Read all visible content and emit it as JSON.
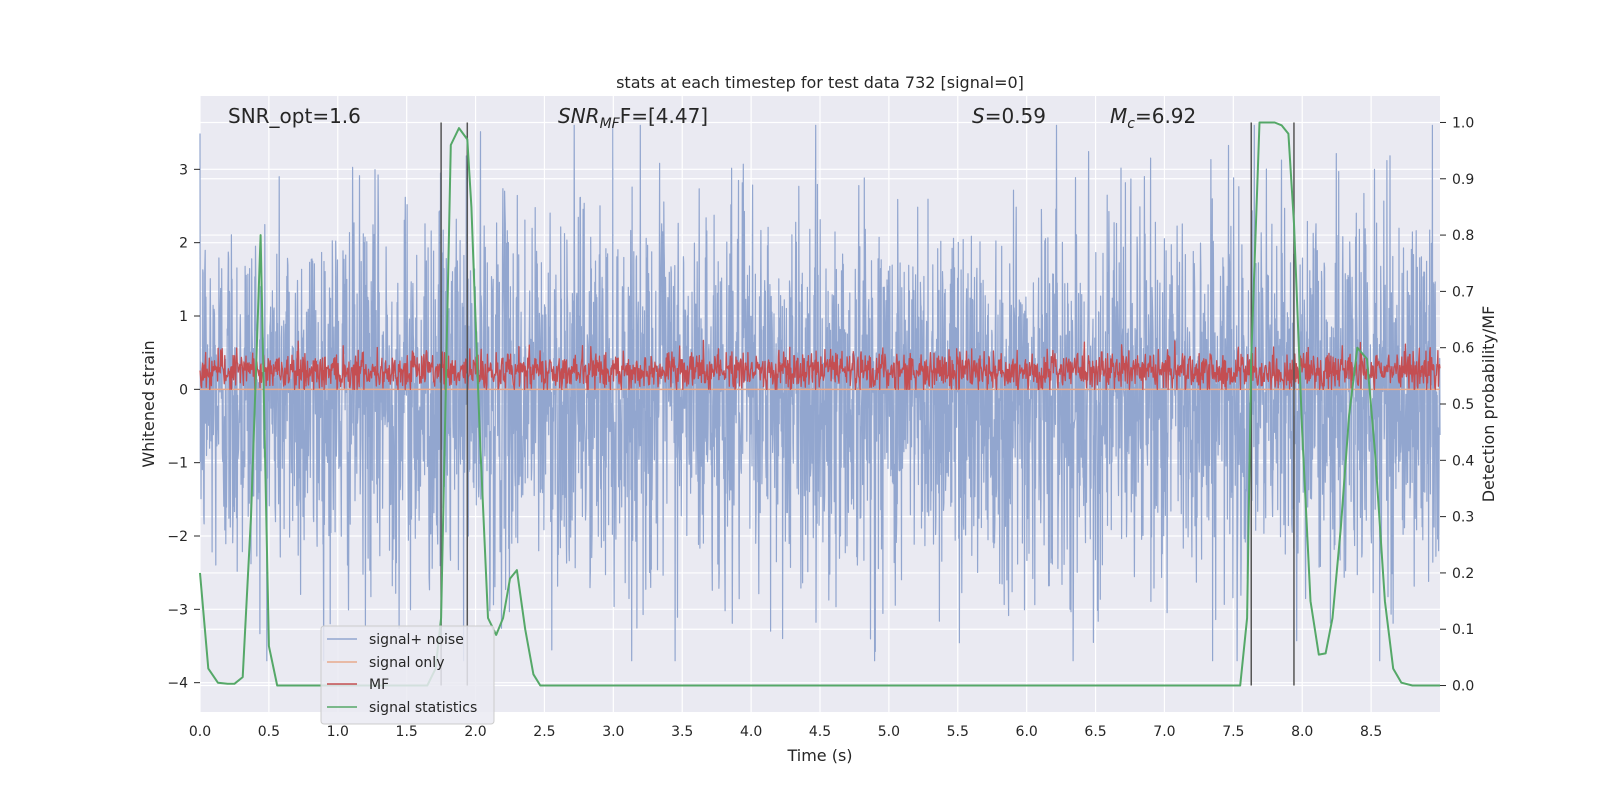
{
  "chart_data": {
    "type": "line",
    "title": "stats at each timestep for test data 732 [signal=0]",
    "xlabel": "Time (s)",
    "ylabel": "Whitened strain",
    "y2label": "Detection probability/MF",
    "xlim": [
      0.0,
      9.0
    ],
    "ylim": [
      -4.4,
      4.0
    ],
    "y2lim": [
      -0.047,
      1.047
    ],
    "xticks": [
      "0.0",
      "0.5",
      "1.0",
      "1.5",
      "2.0",
      "2.5",
      "3.0",
      "3.5",
      "4.0",
      "4.5",
      "5.0",
      "5.5",
      "6.0",
      "6.5",
      "7.0",
      "7.5",
      "8.0",
      "8.5"
    ],
    "xtick_values": [
      0.0,
      0.5,
      1.0,
      1.5,
      2.0,
      2.5,
      3.0,
      3.5,
      4.0,
      4.5,
      5.0,
      5.5,
      6.0,
      6.5,
      7.0,
      7.5,
      8.0,
      8.5
    ],
    "yticks": [
      "3",
      "2",
      "1",
      "0",
      "−1",
      "−2",
      "−3",
      "−4"
    ],
    "ytick_values": [
      3,
      2,
      1,
      0,
      -1,
      -2,
      -3,
      -4
    ],
    "y2ticks": [
      "1.0",
      "0.9",
      "0.8",
      "0.7",
      "0.6",
      "0.5",
      "0.4",
      "0.3",
      "0.2",
      "0.1",
      "0.0"
    ],
    "y2tick_values": [
      1.0,
      0.9,
      0.8,
      0.7,
      0.6,
      0.5,
      0.4,
      0.3,
      0.2,
      0.1,
      0.0
    ],
    "grid": true,
    "legend_position": "lower-left",
    "annotations": {
      "snr_opt": "SNR_opt=1.6",
      "snr_mf_label": "SNR",
      "snr_mf_sub": "MF",
      "snr_mf_value": "F=[4.47]",
      "s_label": "S",
      "s_value": "=0.59",
      "mc_label": "M",
      "mc_sub": "c",
      "mc_value": "=6.92"
    },
    "vertical_lines": [
      1.75,
      1.94,
      7.63,
      7.94
    ],
    "series": [
      {
        "name": "signal+ noise",
        "color": "#92a6cf",
        "axis": "left",
        "style": "noise",
        "center": -0.05,
        "typical_amplitude": 1.5,
        "peak_range": [
          -3.7,
          3.6
        ]
      },
      {
        "name": "signal only",
        "color": "#e8a98c",
        "axis": "left",
        "x": [
          0.0,
          9.0
        ],
        "y": [
          0.0,
          0.0
        ]
      },
      {
        "name": "MF",
        "color": "#c44e52",
        "axis": "left",
        "style": "noise",
        "center": 0.25,
        "typical_amplitude": 0.25,
        "peak_range": [
          0.0,
          1.0
        ]
      },
      {
        "name": "signal statistics",
        "color": "#55a868",
        "axis": "right",
        "x": [
          0.0,
          0.06,
          0.13,
          0.2,
          0.25,
          0.31,
          0.37,
          0.44,
          0.5,
          0.56,
          0.62,
          0.75,
          1.0,
          1.5,
          1.65,
          1.71,
          1.75,
          1.82,
          1.88,
          1.94,
          1.97,
          2.03,
          2.09,
          2.15,
          2.2,
          2.25,
          2.3,
          2.36,
          2.42,
          2.47,
          2.53,
          2.6,
          3.0,
          4.0,
          5.0,
          6.0,
          7.0,
          7.55,
          7.6,
          7.63,
          7.69,
          7.75,
          7.8,
          7.85,
          7.9,
          7.94,
          8.0,
          8.06,
          8.12,
          8.17,
          8.22,
          8.28,
          8.34,
          8.4,
          8.47,
          8.53,
          8.6,
          8.66,
          8.72,
          8.8,
          8.9,
          9.0
        ],
        "y": [
          0.2,
          0.03,
          0.005,
          0.003,
          0.003,
          0.015,
          0.3,
          0.8,
          0.07,
          0.0,
          0.0,
          0.0,
          0.0,
          0.0,
          0.0,
          0.03,
          0.12,
          0.96,
          0.99,
          0.97,
          0.85,
          0.45,
          0.12,
          0.09,
          0.12,
          0.19,
          0.205,
          0.1,
          0.02,
          0.0,
          0.0,
          0.0,
          0.0,
          0.0,
          0.0,
          0.0,
          0.0,
          0.0,
          0.12,
          0.58,
          1.0,
          1.0,
          1.0,
          0.995,
          0.98,
          0.82,
          0.45,
          0.15,
          0.055,
          0.057,
          0.12,
          0.28,
          0.48,
          0.6,
          0.58,
          0.41,
          0.15,
          0.03,
          0.005,
          0.0,
          0.0,
          0.0
        ]
      }
    ]
  }
}
